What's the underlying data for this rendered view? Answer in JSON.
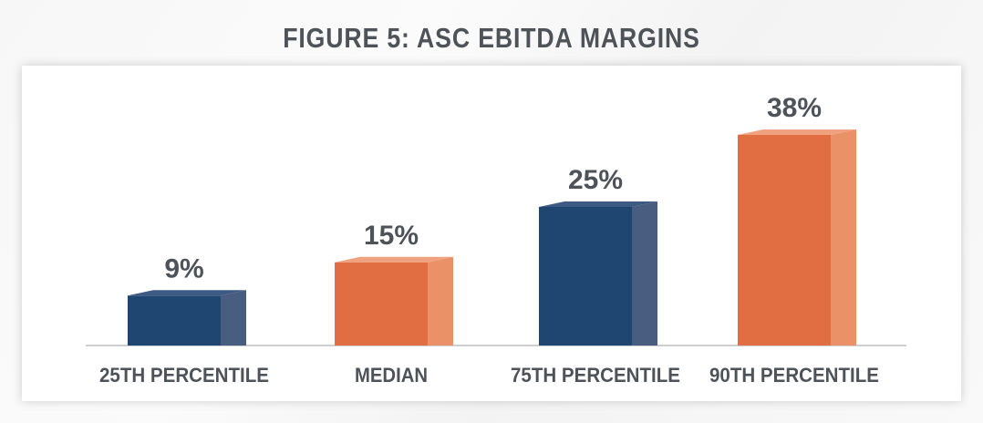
{
  "figure": {
    "title": "FIGURE 5: ASC EBITDA MARGINS"
  },
  "colors": {
    "navy_front": "#1f4670",
    "navy_side": "#485d80",
    "navy_top": "#3d5a85",
    "orange_front": "#e06e42",
    "orange_side": "#eb9168",
    "orange_top": "#f0a27e",
    "text": "#4d5359",
    "axis": "#bfbfbf"
  },
  "chart_data": {
    "type": "bar",
    "title": "FIGURE 5: ASC EBITDA MARGINS",
    "categories": [
      "25TH PERCENTILE",
      "MEDIAN",
      "75TH PERCENTILE",
      "90TH PERCENTILE"
    ],
    "values": [
      9,
      15,
      25,
      38
    ],
    "value_labels": [
      "9%",
      "15%",
      "25%",
      "38%"
    ],
    "value_unit": "%",
    "xlabel": "",
    "ylabel": "",
    "ylim": [
      0,
      40
    ],
    "grid": false,
    "legend": "none",
    "style": "3d-bars",
    "bar_color_scheme": [
      "navy",
      "orange",
      "navy",
      "orange"
    ]
  }
}
